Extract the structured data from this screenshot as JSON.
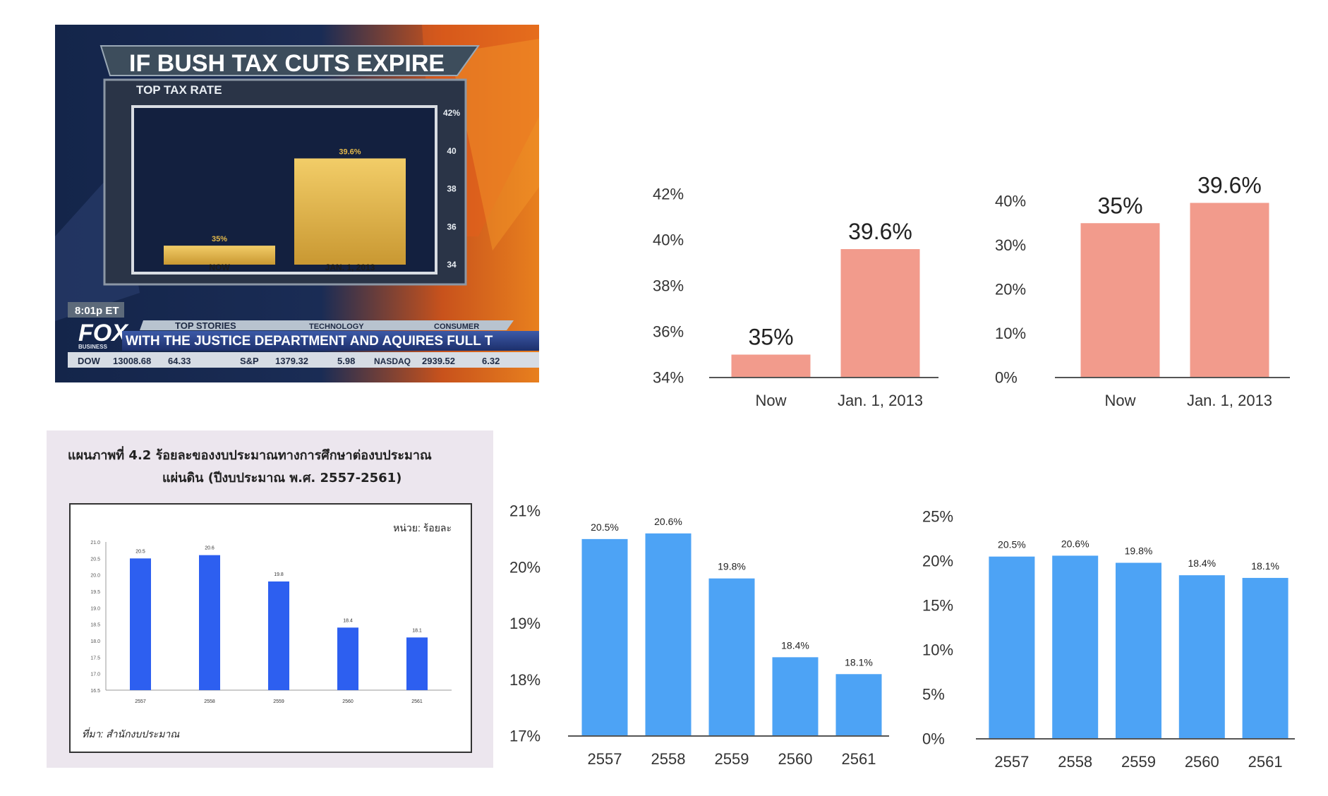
{
  "colors": {
    "salmon": "#f29b8c",
    "blue": "#4da3f5",
    "thai_blue": "#2d5ff0",
    "thai_bg": "#ece6ee",
    "fox_gold": "#e3b84a"
  },
  "fox": {
    "title": "IF BUSH TAX CUTS EXPIRE",
    "subtitle": "TOP TAX RATE",
    "time": "8:01p ET",
    "logo": "FOX",
    "logo_sub": "BUSINESS",
    "tabs": [
      "TOP STORIES",
      "TECHNOLOGY",
      "CONSUMER"
    ],
    "ticker_text": "WITH THE JUSTICE DEPARTMENT AND AQUIRES FULL T",
    "stocks": [
      {
        "name": "DOW",
        "value": "13008.68",
        "change": "64.33"
      },
      {
        "name": "S&P",
        "value": "1379.32",
        "change": "5.98"
      },
      {
        "name": "NASDAQ",
        "value": "2939.52",
        "change": "6.32"
      }
    ]
  },
  "thai": {
    "title_line1": "แผนภาพที่ 4.2  ร้อยละของงบประมาณทางการศึกษาต่องบประมาณ",
    "title_line2": "แผ่นดิน  (ปีงบประมาณ พ.ศ. 2557-2561)",
    "unit": "หน่วย: ร้อยละ",
    "source": "ที่มา: สำนักงบประมาณ"
  },
  "chart_data": [
    {
      "id": "fox",
      "type": "bar",
      "categories": [
        "NOW",
        "JAN. 1, 2013"
      ],
      "values": [
        35,
        39.6
      ],
      "value_labels": [
        "35%",
        "39.6%"
      ],
      "ylim": [
        34,
        42
      ],
      "yticks": [
        "42%",
        "40",
        "38",
        "36",
        "34"
      ],
      "ytick_values": [
        42,
        40,
        38,
        36,
        34
      ]
    },
    {
      "id": "tax-truncated",
      "type": "bar",
      "categories": [
        "Now",
        "Jan. 1, 2013"
      ],
      "values": [
        35,
        39.6
      ],
      "value_labels": [
        "35%",
        "39.6%"
      ],
      "ylim": [
        34,
        42
      ],
      "yticks": [
        "34%",
        "36%",
        "38%",
        "40%",
        "42%"
      ],
      "ytick_values": [
        34,
        36,
        38,
        40,
        42
      ]
    },
    {
      "id": "tax-zero",
      "type": "bar",
      "categories": [
        "Now",
        "Jan. 1, 2013"
      ],
      "values": [
        35,
        39.6
      ],
      "value_labels": [
        "35%",
        "39.6%"
      ],
      "ylim": [
        0,
        40
      ],
      "yticks": [
        "0%",
        "10%",
        "20%",
        "30%",
        "40%"
      ],
      "ytick_values": [
        0,
        10,
        20,
        30,
        40
      ]
    },
    {
      "id": "thai",
      "type": "bar",
      "categories": [
        "2557",
        "2558",
        "2559",
        "2560",
        "2561"
      ],
      "values": [
        20.5,
        20.6,
        19.8,
        18.4,
        18.1
      ],
      "value_labels": [
        "20.5",
        "20.6",
        "19.8",
        "18.4",
        "18.1"
      ],
      "ylim": [
        16.5,
        21.0
      ],
      "yticks": [
        "16.5",
        "17.0",
        "17.5",
        "18.0",
        "18.5",
        "19.0",
        "19.5",
        "20.0",
        "20.5",
        "21.0"
      ],
      "ytick_values": [
        16.5,
        17.0,
        17.5,
        18.0,
        18.5,
        19.0,
        19.5,
        20.0,
        20.5,
        21.0
      ]
    },
    {
      "id": "edu-truncated",
      "type": "bar",
      "categories": [
        "2557",
        "2558",
        "2559",
        "2560",
        "2561"
      ],
      "values": [
        20.5,
        20.6,
        19.8,
        18.4,
        18.1
      ],
      "value_labels": [
        "20.5%",
        "20.6%",
        "19.8%",
        "18.4%",
        "18.1%"
      ],
      "ylim": [
        17,
        21
      ],
      "yticks": [
        "17%",
        "18%",
        "19%",
        "20%",
        "21%"
      ],
      "ytick_values": [
        17,
        18,
        19,
        20,
        21
      ]
    },
    {
      "id": "edu-zero",
      "type": "bar",
      "categories": [
        "2557",
        "2558",
        "2559",
        "2560",
        "2561"
      ],
      "values": [
        20.5,
        20.6,
        19.8,
        18.4,
        18.1
      ],
      "value_labels": [
        "20.5%",
        "20.6%",
        "19.8%",
        "18.4%",
        "18.1%"
      ],
      "ylim": [
        0,
        25
      ],
      "yticks": [
        "0%",
        "5%",
        "10%",
        "15%",
        "20%",
        "25%"
      ],
      "ytick_values": [
        0,
        5,
        10,
        15,
        20,
        25
      ]
    }
  ]
}
